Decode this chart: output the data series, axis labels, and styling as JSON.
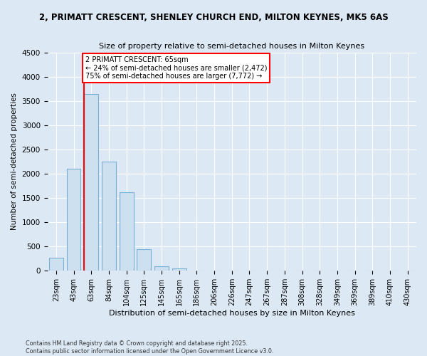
{
  "title_line1": "2, PRIMATT CRESCENT, SHENLEY CHURCH END, MILTON KEYNES, MK5 6AS",
  "title_line2": "Size of property relative to semi-detached houses in Milton Keynes",
  "xlabel": "Distribution of semi-detached houses by size in Milton Keynes",
  "ylabel": "Number of semi-detached properties",
  "annotation_line1": "2 PRIMATT CRESCENT: 65sqm",
  "annotation_line2": "← 24% of semi-detached houses are smaller (2,472)",
  "annotation_line3": "75% of semi-detached houses are larger (7,772) →",
  "footer_line1": "Contains HM Land Registry data © Crown copyright and database right 2025.",
  "footer_line2": "Contains public sector information licensed under the Open Government Licence v3.0.",
  "categories": [
    "23sqm",
    "43sqm",
    "63sqm",
    "84sqm",
    "104sqm",
    "125sqm",
    "145sqm",
    "165sqm",
    "186sqm",
    "206sqm",
    "226sqm",
    "247sqm",
    "267sqm",
    "287sqm",
    "308sqm",
    "328sqm",
    "349sqm",
    "369sqm",
    "389sqm",
    "410sqm",
    "430sqm"
  ],
  "values": [
    270,
    2100,
    3650,
    2250,
    1620,
    440,
    100,
    55,
    0,
    0,
    0,
    0,
    0,
    0,
    0,
    0,
    0,
    0,
    0,
    0,
    0
  ],
  "bar_color": "#cce0f0",
  "bar_edge_color": "#7aafd4",
  "annotation_box_edge_color": "red",
  "annotation_box_face_color": "white",
  "background_color": "#dce9f5",
  "plot_background_color": "#dce9f5",
  "ylim": [
    0,
    4500
  ],
  "yticks": [
    0,
    500,
    1000,
    1500,
    2000,
    2500,
    3000,
    3500,
    4000,
    4500
  ],
  "vline_index": 2,
  "vline_color": "red",
  "vline_linewidth": 1.5
}
